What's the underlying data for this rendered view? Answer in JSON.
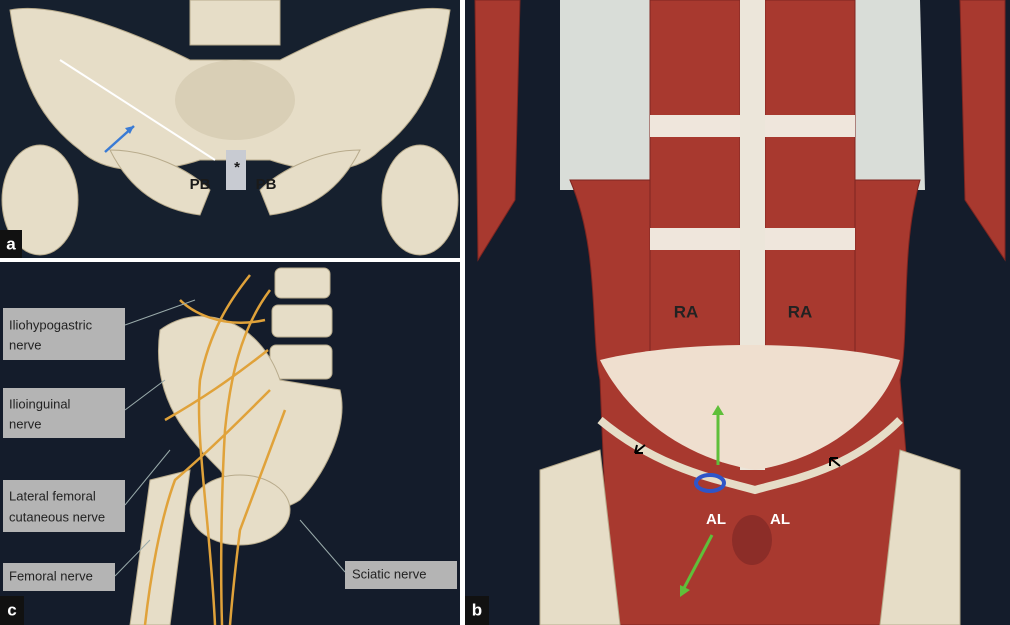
{
  "panels": [
    {
      "letter": "a",
      "labels": [
        "PB",
        "PB",
        "*"
      ]
    },
    {
      "letter": "b",
      "labels": [
        "RA",
        "RA",
        "AL",
        "AL"
      ]
    },
    {
      "letter": "c",
      "callouts": [
        {
          "lines": [
            "Iliohypogastric",
            "nerve"
          ]
        },
        {
          "lines": [
            "Ilioinguinal",
            "nerve"
          ]
        },
        {
          "lines": [
            "Lateral femoral",
            "cutaneous nerve"
          ]
        },
        {
          "lines": [
            "Femoral nerve"
          ]
        },
        {
          "lines": [
            "Sciatic nerve"
          ]
        }
      ]
    }
  ]
}
